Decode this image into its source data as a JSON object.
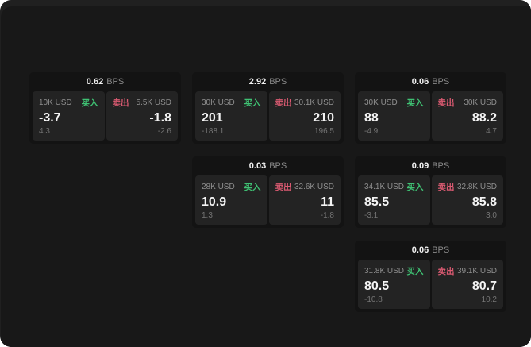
{
  "labels": {
    "bps": "BPS",
    "buy": "买入",
    "sell": "卖出"
  },
  "colors": {
    "surface": "#202020",
    "window": "#181818",
    "card_bg": "#131313",
    "panel_bg": "#232323",
    "buy": "#3fc173",
    "sell": "#da5a71",
    "text_primary": "#f4f4f4",
    "text_muted": "#8f8f8f",
    "text_dim": "#757575"
  },
  "cards": [
    {
      "row": 1,
      "col": 1,
      "bps": "0.62",
      "buy": {
        "amount": "10K USD",
        "value": "-3.7",
        "sub": "4.3"
      },
      "sell": {
        "amount": "5.5K USD",
        "value": "-1.8",
        "sub": "-2.6"
      }
    },
    {
      "row": 1,
      "col": 2,
      "bps": "2.92",
      "buy": {
        "amount": "30K USD",
        "value": "201",
        "sub": "-188.1"
      },
      "sell": {
        "amount": "30.1K USD",
        "value": "210",
        "sub": "196.5"
      }
    },
    {
      "row": 1,
      "col": 3,
      "bps": "0.06",
      "buy": {
        "amount": "30K USD",
        "value": "88",
        "sub": "-4.9"
      },
      "sell": {
        "amount": "30K USD",
        "value": "88.2",
        "sub": "4.7"
      }
    },
    {
      "row": 2,
      "col": 2,
      "bps": "0.03",
      "buy": {
        "amount": "28K USD",
        "value": "10.9",
        "sub": "1.3"
      },
      "sell": {
        "amount": "32.6K USD",
        "value": "11",
        "sub": "-1.8"
      }
    },
    {
      "row": 2,
      "col": 3,
      "bps": "0.09",
      "buy": {
        "amount": "34.1K USD",
        "value": "85.5",
        "sub": "-3.1"
      },
      "sell": {
        "amount": "32.8K USD",
        "value": "85.8",
        "sub": "3.0"
      }
    },
    {
      "row": 3,
      "col": 3,
      "bps": "0.06",
      "buy": {
        "amount": "31.8K USD",
        "value": "80.5",
        "sub": "-10.8"
      },
      "sell": {
        "amount": "39.1K USD",
        "value": "80.7",
        "sub": "10.2"
      }
    }
  ]
}
